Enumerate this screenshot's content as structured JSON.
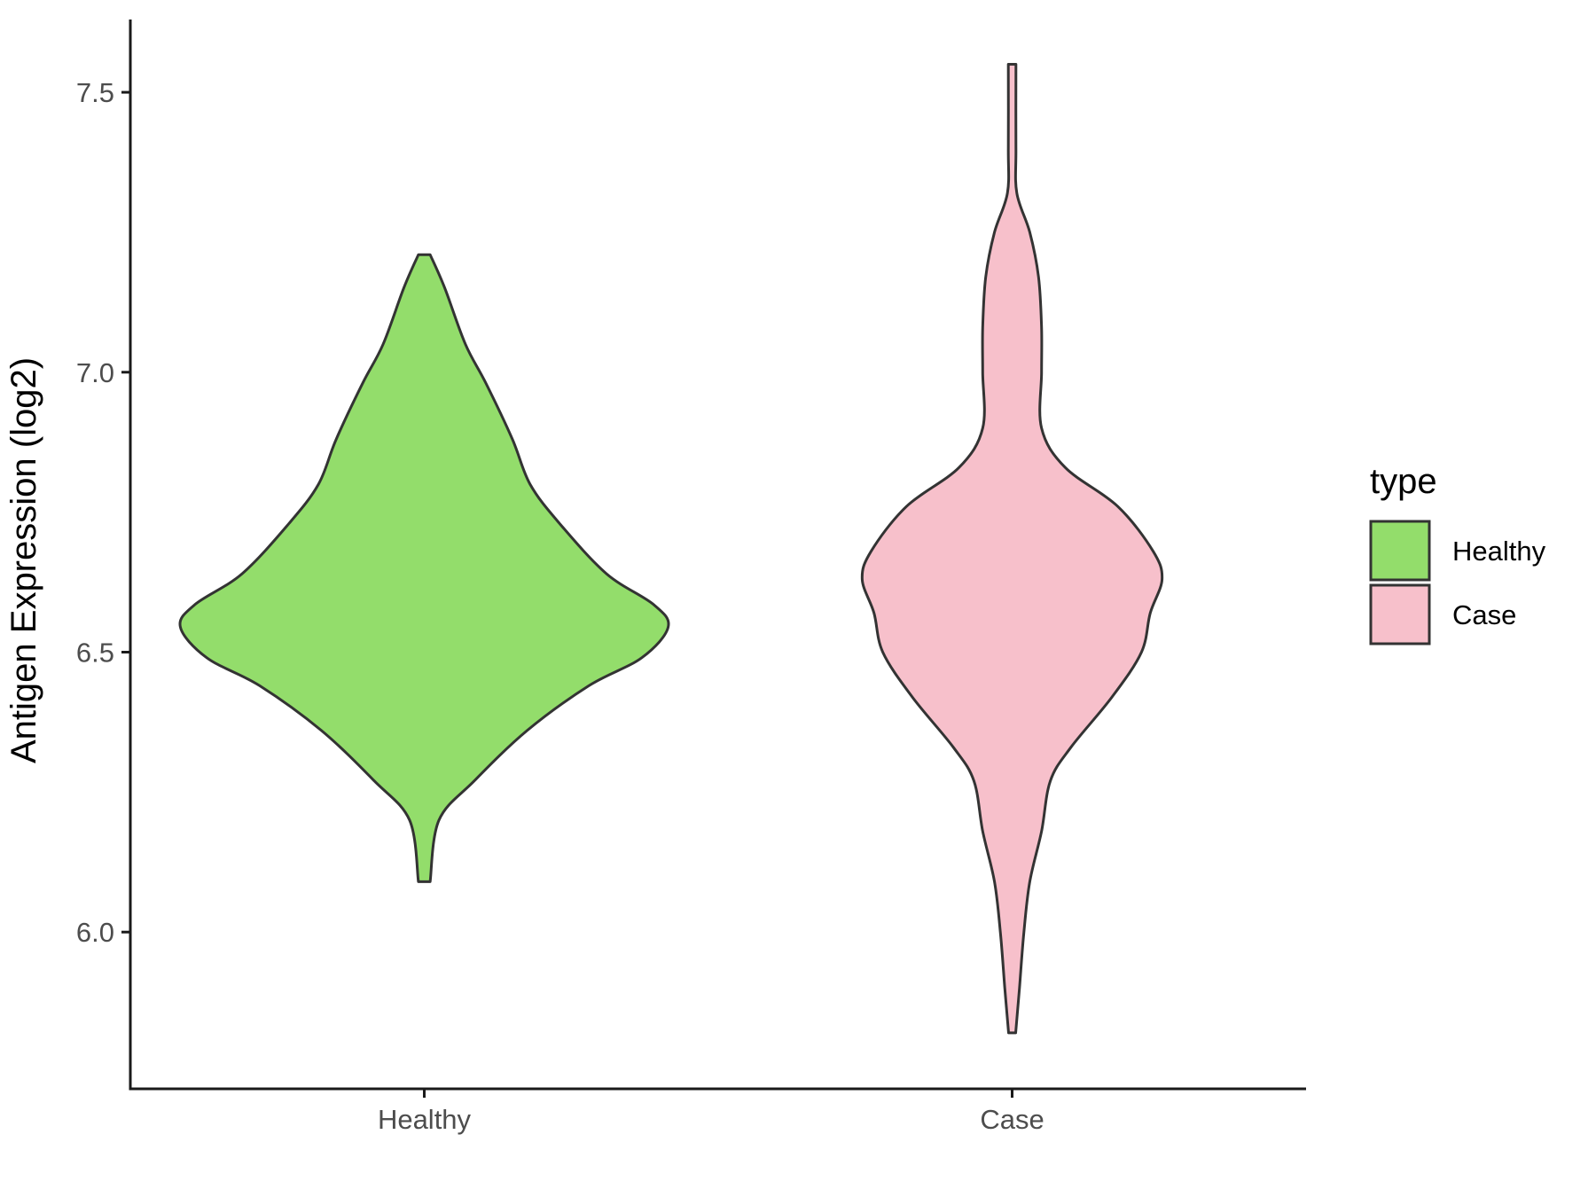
{
  "chart_data": {
    "type": "violin",
    "title": "",
    "xlabel": "",
    "ylabel": "Antigen Expression (log2)",
    "categories": [
      "Healthy",
      "Case"
    ],
    "yticks": [
      "6.0",
      "6.5",
      "7.0",
      "7.5"
    ],
    "ylim": [
      5.72,
      7.63
    ],
    "grid": false,
    "legend": {
      "title": "type",
      "position": "right",
      "entries": [
        "Healthy",
        "Case"
      ]
    },
    "series": [
      {
        "name": "Healthy",
        "color": "#93dd6b",
        "min": 6.09,
        "max": 7.21,
        "profile": [
          [
            7.21,
            0.02
          ],
          [
            7.15,
            0.07
          ],
          [
            7.05,
            0.14
          ],
          [
            6.98,
            0.21
          ],
          [
            6.88,
            0.3
          ],
          [
            6.8,
            0.36
          ],
          [
            6.73,
            0.46
          ],
          [
            6.64,
            0.62
          ],
          [
            6.585,
            0.78
          ],
          [
            6.545,
            0.83
          ],
          [
            6.49,
            0.74
          ],
          [
            6.44,
            0.56
          ],
          [
            6.36,
            0.35
          ],
          [
            6.27,
            0.17
          ],
          [
            6.2,
            0.05
          ],
          [
            6.09,
            0.02
          ]
        ]
      },
      {
        "name": "Case",
        "color": "#f7c0cb",
        "min": 5.82,
        "max": 7.55,
        "profile": [
          [
            7.55,
            0.013
          ],
          [
            7.4,
            0.013
          ],
          [
            7.32,
            0.016
          ],
          [
            7.25,
            0.06
          ],
          [
            7.17,
            0.09
          ],
          [
            7.08,
            0.1
          ],
          [
            7.0,
            0.1
          ],
          [
            6.9,
            0.1
          ],
          [
            6.83,
            0.18
          ],
          [
            6.76,
            0.36
          ],
          [
            6.68,
            0.48
          ],
          [
            6.63,
            0.51
          ],
          [
            6.57,
            0.47
          ],
          [
            6.5,
            0.44
          ],
          [
            6.42,
            0.34
          ],
          [
            6.33,
            0.2
          ],
          [
            6.27,
            0.13
          ],
          [
            6.18,
            0.1
          ],
          [
            6.09,
            0.06
          ],
          [
            6.0,
            0.04
          ],
          [
            5.9,
            0.025
          ],
          [
            5.82,
            0.012
          ]
        ]
      }
    ]
  }
}
